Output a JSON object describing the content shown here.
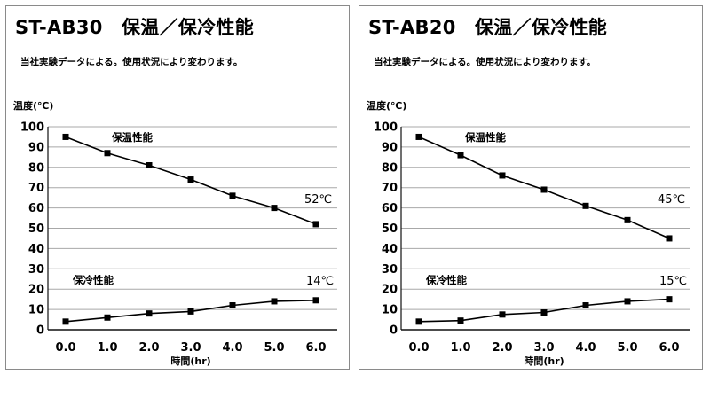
{
  "panels": [
    {
      "title": "ST-AB30　保温／保冷性能",
      "note": "当社実験データによる。使用状況により変わります。"
    },
    {
      "title": "ST-AB20　保温／保冷性能",
      "note": "当社実験データによる。使用状況により変わります。"
    }
  ],
  "chart_data": [
    {
      "type": "line",
      "title": "ST-AB30　保温／保冷性能",
      "subtitle": "当社実験データによる。使用状況により変わります。",
      "xlabel": "時間(hr)",
      "ylabel": "温度(℃)",
      "x": [
        0.0,
        1.0,
        2.0,
        3.0,
        4.0,
        5.0,
        6.0
      ],
      "x_ticks": [
        "0.0",
        "1.0",
        "2.0",
        "3.0",
        "4.0",
        "5.0",
        "6.0"
      ],
      "y_ticks": [
        "100",
        "90",
        "80",
        "70",
        "60",
        "50",
        "40",
        "30",
        "20",
        "10",
        "0"
      ],
      "ylim": [
        0,
        100
      ],
      "xlim": [
        0,
        6
      ],
      "grid": "horizontal",
      "series": [
        {
          "name": "保温性能",
          "values": [
            95,
            87,
            81,
            74,
            66,
            60,
            52
          ],
          "end_label": "52℃"
        },
        {
          "name": "保冷性能",
          "values": [
            4,
            6,
            8,
            9,
            12,
            14,
            14.5
          ],
          "end_label": "14℃"
        }
      ]
    },
    {
      "type": "line",
      "title": "ST-AB20　保温／保冷性能",
      "subtitle": "当社実験データによる。使用状況により変わります。",
      "xlabel": "時間(hr)",
      "ylabel": "温度(℃)",
      "x": [
        0.0,
        1.0,
        2.0,
        3.0,
        4.0,
        5.0,
        6.0
      ],
      "x_ticks": [
        "0.0",
        "1.0",
        "2.0",
        "3.0",
        "4.0",
        "5.0",
        "6.0"
      ],
      "y_ticks": [
        "100",
        "90",
        "80",
        "70",
        "60",
        "50",
        "40",
        "30",
        "20",
        "10",
        "0"
      ],
      "ylim": [
        0,
        100
      ],
      "xlim": [
        0,
        6
      ],
      "grid": "horizontal",
      "series": [
        {
          "name": "保温性能",
          "values": [
            95,
            86,
            76,
            69,
            61,
            54,
            45
          ],
          "end_label": "45℃"
        },
        {
          "name": "保冷性能",
          "values": [
            4,
            4.5,
            7.5,
            8.5,
            12,
            14,
            15
          ],
          "end_label": "15℃"
        }
      ]
    }
  ],
  "colors": {
    "line": "#000000",
    "grid": "#a8a8a8",
    "axis": "#111111",
    "border": "#8a8a8a"
  },
  "icons": {
    "marker": "square-marker"
  }
}
